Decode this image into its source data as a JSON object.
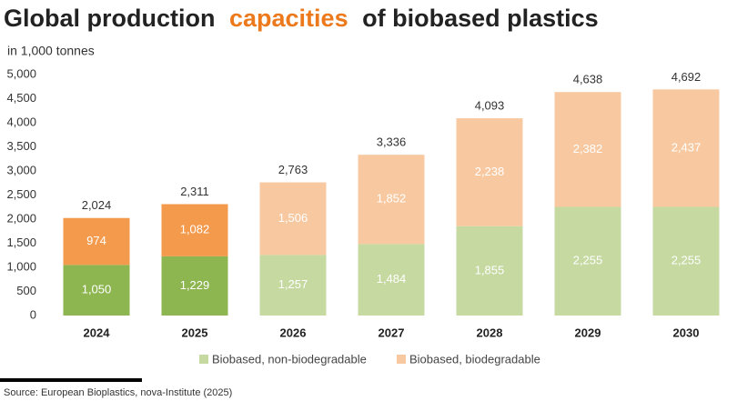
{
  "chart_data": {
    "type": "stacked_bar",
    "title": [
      "Global production",
      "capacities",
      "of biobased plastics"
    ],
    "title_highlight_color": "#ec7a1c",
    "subtitle": "in 1,000 tonnes",
    "source": "Source: European Bioplastics, nova-Institute (2025)",
    "categories": [
      "2024",
      "2025",
      "2026",
      "2027",
      "2028",
      "2029",
      "2030"
    ],
    "series": [
      {
        "name": "Biobased, non-biodegradable",
        "color": "#c5d9a0",
        "colors": [
          "#8db651",
          "#8db651",
          "#c5d9a0",
          "#c5d9a0",
          "#c5d9a0",
          "#c5d9a0",
          "#c5d9a0"
        ],
        "values": [
          1050,
          1229,
          1257,
          1484,
          1855,
          2255,
          2255
        ],
        "value_labels": [
          "1,050",
          "1,229",
          "1,257",
          "1,484",
          "1,855",
          "2,255",
          "2,255"
        ]
      },
      {
        "name": "Biobased, biodegradable",
        "color": "#f8c9a1",
        "colors": [
          "#f39a4c",
          "#f39a4c",
          "#f8c9a1",
          "#f8c9a1",
          "#f8c9a1",
          "#f8c9a1",
          "#f8c9a1"
        ],
        "values": [
          974,
          1082,
          1506,
          1852,
          2238,
          2382,
          2437
        ],
        "value_labels": [
          "974",
          "1,082",
          "1,506",
          "1,852",
          "2,238",
          "2,382",
          "2,437"
        ]
      }
    ],
    "totals": [
      2024,
      2311,
      2763,
      3336,
      4093,
      4638,
      4692
    ],
    "total_labels": [
      "2,024",
      "2,311",
      "2,763",
      "3,336",
      "4,093",
      "4,638",
      "4,692"
    ],
    "ylim": [
      0,
      5000
    ],
    "yticks": [
      0,
      500,
      {
        "value": 1000,
        "label": "1,000"
      },
      {
        "value": 1500,
        "label": "1,500"
      },
      {
        "value": 2000,
        "label": "2,000"
      },
      {
        "value": 2500,
        "label": "2,500"
      },
      {
        "value": 3000,
        "label": "3,000"
      },
      {
        "value": 3500,
        "label": "3,500"
      },
      {
        "value": 4000,
        "label": "4,000"
      },
      {
        "value": 4500,
        "label": "4,500"
      },
      {
        "value": 5000,
        "label": "5,000"
      }
    ],
    "grid": false
  }
}
